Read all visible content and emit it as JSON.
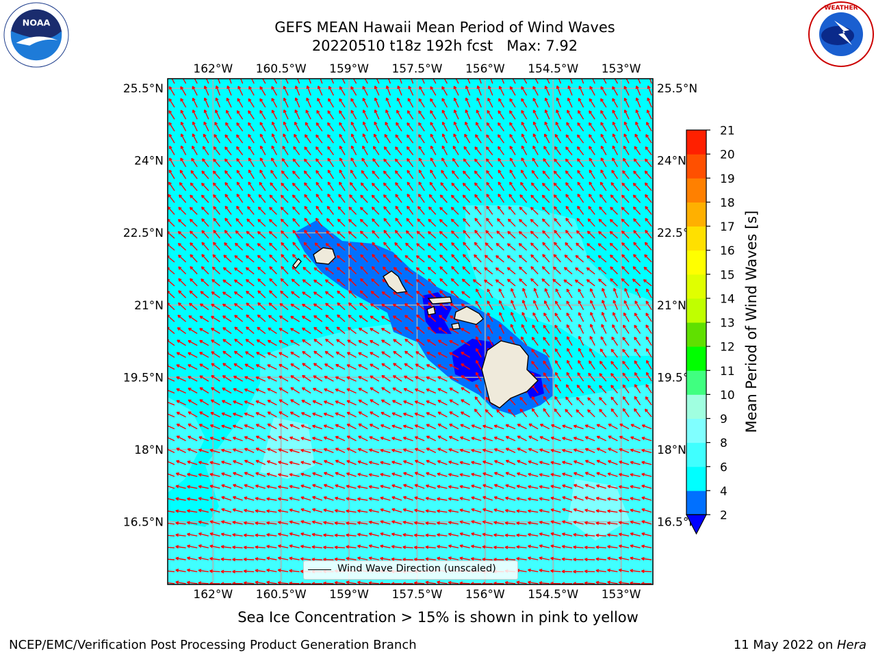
{
  "header": {
    "title_line1": "GEFS MEAN Hawaii Mean Period of Wind Waves",
    "title_line2": "20220510 t18z 192h fcst   Max: 7.92"
  },
  "logos": {
    "left": "NOAA",
    "right": "NATIONAL WEATHER SERVICE"
  },
  "map": {
    "lon_ticks": [
      "162°W",
      "160.5°W",
      "159°W",
      "157.5°W",
      "156°W",
      "154.5°W",
      "153°W"
    ],
    "lat_ticks": [
      "25.5°N",
      "24°N",
      "22.5°N",
      "21°N",
      "19.5°N",
      "18°N",
      "16.5°N"
    ],
    "lon_values": [
      -162,
      -160.5,
      -159,
      -157.5,
      -156,
      -154.5,
      -153
    ],
    "lat_values": [
      25.5,
      24,
      22.5,
      21,
      19.5,
      18,
      16.5
    ],
    "lon_range": [
      -163,
      -152.3
    ],
    "lat_range": [
      15.2,
      25.7
    ],
    "legend_label": "Wind Wave Direction (unscaled)",
    "vector_color": "#ff0000",
    "background_field_color": "#00ffff"
  },
  "colorbar": {
    "label": "Mean Period of Wind Waves [s]",
    "levels": [
      2,
      4,
      6,
      8,
      9,
      10,
      11,
      12,
      13,
      14,
      15,
      16,
      17,
      18,
      19,
      20,
      21
    ],
    "colors": [
      "#0070ff",
      "#00ffff",
      "#40ffff",
      "#80ffff",
      "#a0ffe0",
      "#40ff80",
      "#00ff00",
      "#60e000",
      "#c0ff00",
      "#e0ff00",
      "#ffff00",
      "#ffe000",
      "#ffb000",
      "#ff8000",
      "#ff5000",
      "#ff2000"
    ],
    "extend_color": "#0000ff"
  },
  "subtitle": "Sea Ice Concentration > 15% is shown in pink to yellow",
  "footer": {
    "left": "NCEP/EMC/Verification Post Processing Product Generation Branch",
    "right_prefix": "11 May 2022 on ",
    "right_machine": "Hera"
  }
}
